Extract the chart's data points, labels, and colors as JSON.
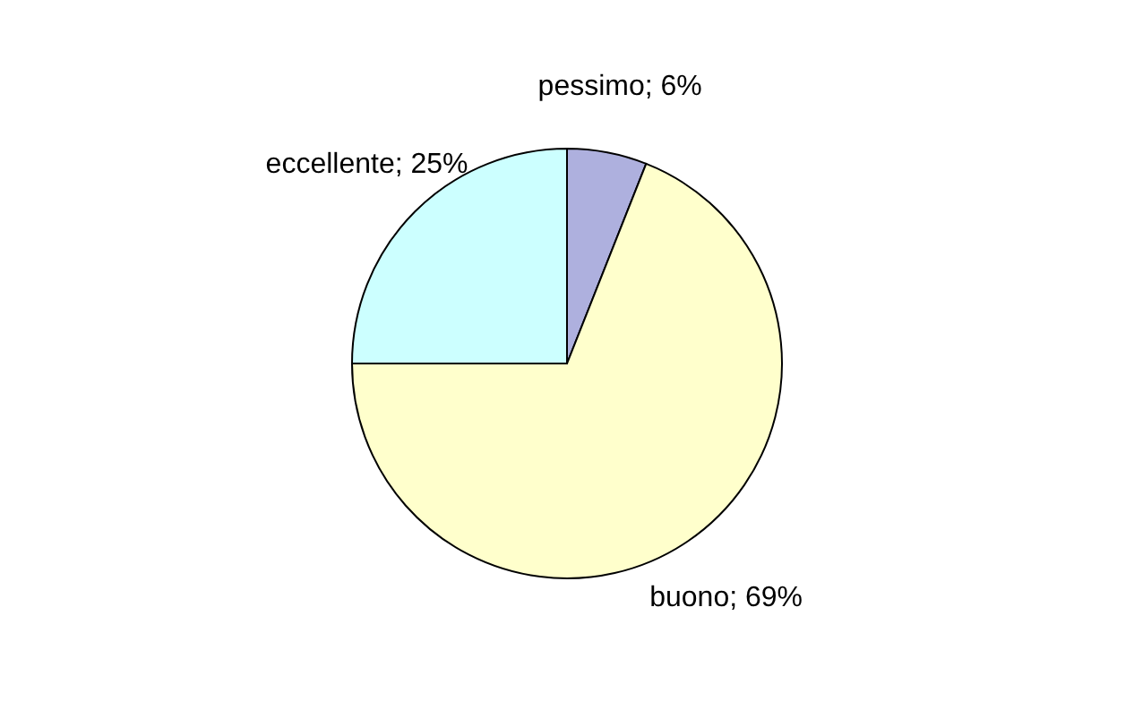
{
  "chart_data": {
    "type": "pie",
    "categories": [
      "pessimo",
      "buono",
      "eccellente"
    ],
    "values": [
      6,
      69,
      25
    ],
    "colors": [
      "#aeb0de",
      "#ffffcc",
      "#ccffff"
    ],
    "value_labels": [
      "6%",
      "69%",
      "25%"
    ],
    "legend": false
  }
}
